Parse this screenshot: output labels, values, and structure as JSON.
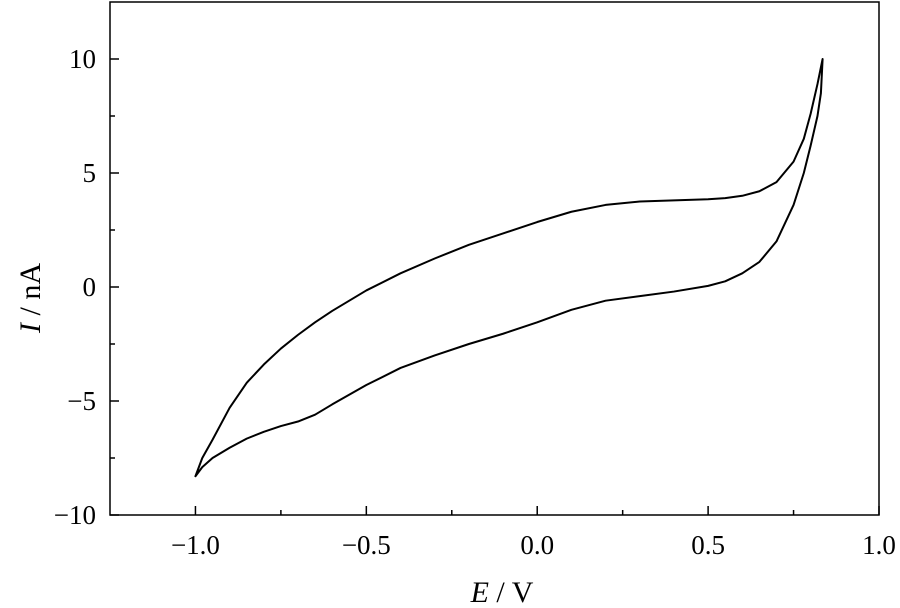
{
  "chart_data": {
    "type": "line",
    "title": "",
    "xlabel": {
      "symbol": "E",
      "unit": " / V"
    },
    "ylabel": {
      "symbol": "I",
      "unit": " / nA"
    },
    "xlim": [
      -1.25,
      1.0
    ],
    "ylim": [
      -10,
      12.5
    ],
    "x_ticks": [
      {
        "value": -1.0,
        "label": "−1.0"
      },
      {
        "value": -0.5,
        "label": "−0.5"
      },
      {
        "value": 0.0,
        "label": "0.0"
      },
      {
        "value": 0.5,
        "label": "0.5"
      },
      {
        "value": 1.0,
        "label": "1.0"
      }
    ],
    "y_ticks": [
      {
        "value": -10,
        "label": "−10"
      },
      {
        "value": -5,
        "label": "−5"
      },
      {
        "value": 0,
        "label": "0"
      },
      {
        "value": 5,
        "label": "5"
      },
      {
        "value": 10,
        "label": "10"
      }
    ],
    "x_minor_ticks": [
      -0.75,
      -0.25,
      0.25,
      0.75
    ],
    "y_minor_ticks": [
      -7.5,
      -2.5,
      2.5,
      7.5
    ],
    "grid": false,
    "legend": "none",
    "series": [
      {
        "values": [
          [
            -1.0,
            -8.3
          ],
          [
            -0.98,
            -7.5
          ],
          [
            -0.95,
            -6.7
          ],
          [
            -0.9,
            -5.3
          ],
          [
            -0.85,
            -4.2
          ],
          [
            -0.8,
            -3.4
          ],
          [
            -0.75,
            -2.7
          ],
          [
            -0.7,
            -2.1
          ],
          [
            -0.65,
            -1.55
          ],
          [
            -0.6,
            -1.05
          ],
          [
            -0.5,
            -0.15
          ],
          [
            -0.4,
            0.6
          ],
          [
            -0.3,
            1.25
          ],
          [
            -0.2,
            1.85
          ],
          [
            -0.1,
            2.35
          ],
          [
            0.0,
            2.85
          ],
          [
            0.1,
            3.3
          ],
          [
            0.2,
            3.6
          ],
          [
            0.3,
            3.75
          ],
          [
            0.4,
            3.8
          ],
          [
            0.5,
            3.85
          ],
          [
            0.55,
            3.9
          ],
          [
            0.6,
            4.0
          ],
          [
            0.65,
            4.2
          ],
          [
            0.7,
            4.6
          ],
          [
            0.75,
            5.5
          ],
          [
            0.78,
            6.5
          ],
          [
            0.8,
            7.6
          ],
          [
            0.82,
            8.9
          ],
          [
            0.835,
            10.0
          ],
          [
            0.83,
            8.5
          ],
          [
            0.82,
            7.5
          ],
          [
            0.8,
            6.2
          ],
          [
            0.78,
            5.0
          ],
          [
            0.75,
            3.6
          ],
          [
            0.7,
            2.0
          ],
          [
            0.65,
            1.1
          ],
          [
            0.6,
            0.6
          ],
          [
            0.55,
            0.25
          ],
          [
            0.5,
            0.05
          ],
          [
            0.4,
            -0.2
          ],
          [
            0.3,
            -0.4
          ],
          [
            0.2,
            -0.6
          ],
          [
            0.1,
            -1.0
          ],
          [
            0.0,
            -1.55
          ],
          [
            -0.1,
            -2.05
          ],
          [
            -0.2,
            -2.5
          ],
          [
            -0.3,
            -3.0
          ],
          [
            -0.4,
            -3.55
          ],
          [
            -0.5,
            -4.3
          ],
          [
            -0.6,
            -5.15
          ],
          [
            -0.65,
            -5.6
          ],
          [
            -0.7,
            -5.9
          ],
          [
            -0.75,
            -6.1
          ],
          [
            -0.8,
            -6.35
          ],
          [
            -0.85,
            -6.65
          ],
          [
            -0.9,
            -7.05
          ],
          [
            -0.95,
            -7.5
          ],
          [
            -0.98,
            -7.9
          ],
          [
            -1.0,
            -8.3
          ]
        ]
      }
    ]
  }
}
